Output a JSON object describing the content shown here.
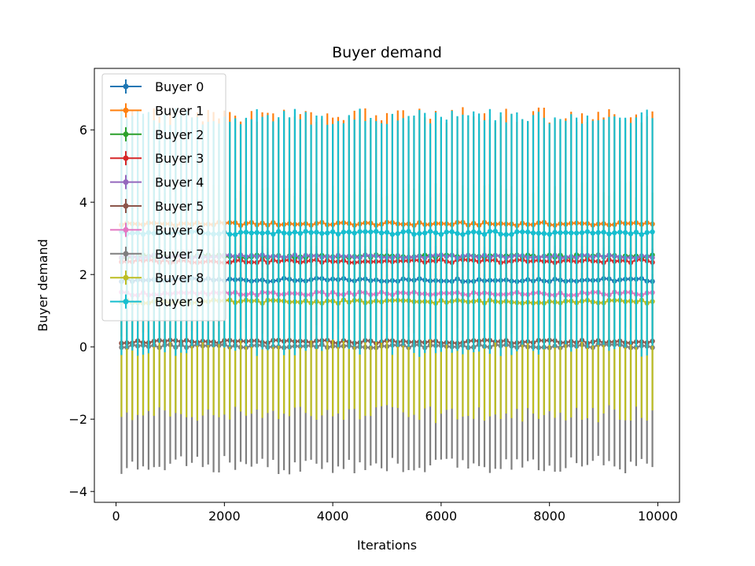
{
  "chart_data": {
    "type": "line",
    "title": "Buyer demand",
    "xlabel": "Iterations",
    "ylabel": "Buyer demand",
    "xlim": [
      -400,
      10400
    ],
    "ylim": [
      -4.3,
      7.7
    ],
    "xticks": [
      0,
      2000,
      4000,
      6000,
      8000,
      10000
    ],
    "xtick_labels": [
      "0",
      "2000",
      "4000",
      "6000",
      "8000",
      "10000"
    ],
    "yticks": [
      -4,
      -2,
      0,
      2,
      4,
      6
    ],
    "ytick_labels": [
      "−4",
      "−2",
      "0",
      "2",
      "4",
      "6"
    ],
    "x": {
      "start": 100,
      "stop": 9900,
      "step": 100
    },
    "error_bars": true,
    "legend": {
      "position": "top-left"
    },
    "series": [
      {
        "name": "Buyer 0",
        "color": "#1f77b4",
        "mean": 1.85,
        "err": 0.2
      },
      {
        "name": "Buyer 1",
        "color": "#ff7f0e",
        "mean": 3.4,
        "err": 3.0
      },
      {
        "name": "Buyer 2",
        "color": "#2ca02c",
        "mean": 2.5,
        "err": 0.15
      },
      {
        "name": "Buyer 3",
        "color": "#d62728",
        "mean": 2.37,
        "err": 0.2
      },
      {
        "name": "Buyer 4",
        "color": "#9467bd",
        "mean": 2.5,
        "err": 0.25
      },
      {
        "name": "Buyer 5",
        "color": "#8c564b",
        "mean": 0.14,
        "err": 0.1
      },
      {
        "name": "Buyer 6",
        "color": "#e377c2",
        "mean": 1.47,
        "err": 0.2
      },
      {
        "name": "Buyer 7",
        "color": "#7f7f7f",
        "mean": 0.02,
        "err": 3.3
      },
      {
        "name": "Buyer 8",
        "color": "#bcbd22",
        "mean": 1.25,
        "err": 3.1
      },
      {
        "name": "Buyer 9",
        "color": "#17becf",
        "mean": 3.15,
        "err": 3.2
      }
    ]
  }
}
